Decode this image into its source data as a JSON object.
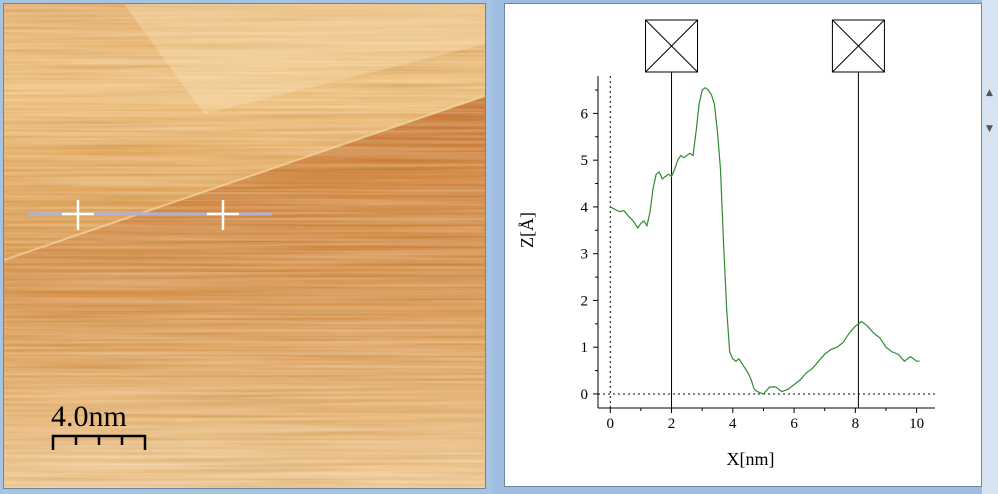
{
  "stm_image": {
    "scale_bar_label": "4.0nm",
    "colors": {
      "dark": "#b9560f",
      "mid": "#d88d3e",
      "light": "#f3cf97",
      "highlight": "#fbe9c8"
    },
    "line_profile_color": "#a8b4dc",
    "marker_color": "#ffffff"
  },
  "chart_data": {
    "type": "line",
    "xlabel": "X[nm]",
    "ylabel": "Z[Å]",
    "xlim": [
      -0.4,
      10.6
    ],
    "ylim": [
      -0.3,
      6.8
    ],
    "x_ticks": [
      "0",
      "2",
      "4",
      "6",
      "8",
      "10"
    ],
    "y_ticks": [
      "0",
      "1",
      "2",
      "3",
      "4",
      "5",
      "6"
    ],
    "series_color": "#2e8b2e",
    "cursor_positions_x": [
      2.0,
      8.1
    ],
    "cursor_icon": "box-cross-icon",
    "baseline_dotted": true,
    "zero_x_dotted": true,
    "x": [
      0,
      0.15,
      0.3,
      0.45,
      0.6,
      0.75,
      0.9,
      1.0,
      1.1,
      1.2,
      1.3,
      1.4,
      1.5,
      1.6,
      1.7,
      1.8,
      1.9,
      2.0,
      2.1,
      2.2,
      2.3,
      2.4,
      2.5,
      2.6,
      2.7,
      2.8,
      2.9,
      3.0,
      3.1,
      3.2,
      3.3,
      3.4,
      3.5,
      3.6,
      3.7,
      3.8,
      3.9,
      4.0,
      4.1,
      4.2,
      4.3,
      4.4,
      4.5,
      4.6,
      4.7,
      4.8,
      5.0,
      5.2,
      5.4,
      5.6,
      5.8,
      6.0,
      6.2,
      6.4,
      6.6,
      6.8,
      7.0,
      7.2,
      7.4,
      7.6,
      7.8,
      8.0,
      8.2,
      8.4,
      8.6,
      8.8,
      9.0,
      9.2,
      9.4,
      9.6,
      9.8,
      10.0,
      10.1
    ],
    "y": [
      4.0,
      3.95,
      3.9,
      3.92,
      3.8,
      3.7,
      3.55,
      3.65,
      3.7,
      3.6,
      3.9,
      4.4,
      4.7,
      4.75,
      4.6,
      4.65,
      4.7,
      4.65,
      4.8,
      5.0,
      5.1,
      5.05,
      5.1,
      5.15,
      5.1,
      5.6,
      6.2,
      6.5,
      6.55,
      6.5,
      6.4,
      6.2,
      5.6,
      4.8,
      3.2,
      1.8,
      0.9,
      0.75,
      0.7,
      0.75,
      0.65,
      0.55,
      0.45,
      0.3,
      0.1,
      0.05,
      0.0,
      0.15,
      0.15,
      0.05,
      0.1,
      0.2,
      0.3,
      0.45,
      0.55,
      0.7,
      0.85,
      0.95,
      1.0,
      1.1,
      1.3,
      1.45,
      1.55,
      1.45,
      1.3,
      1.2,
      1.0,
      0.9,
      0.85,
      0.7,
      0.8,
      0.7,
      0.7
    ]
  }
}
